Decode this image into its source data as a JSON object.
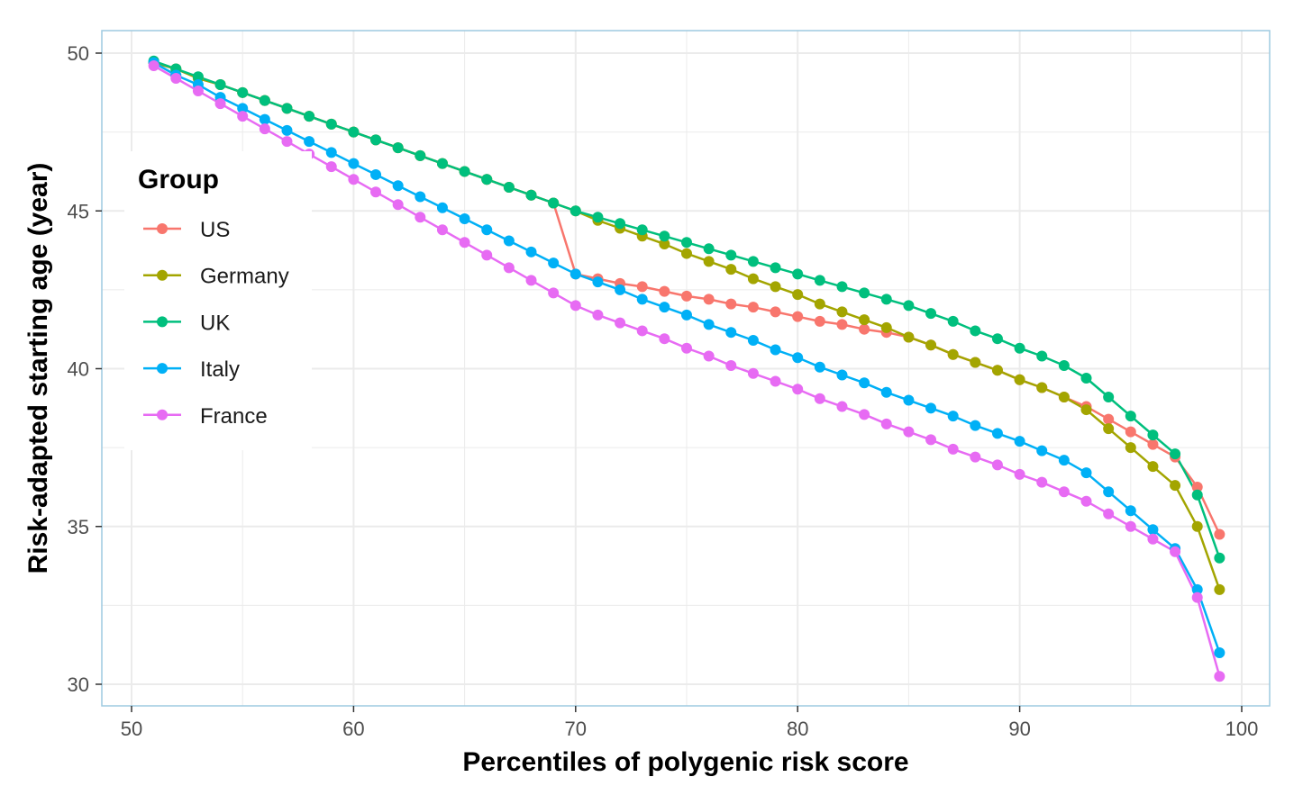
{
  "chart_data": {
    "type": "line",
    "xlabel": "Percentiles of polygenic risk score",
    "ylabel": "Risk-adapted starting age (year)",
    "xlim": [
      50,
      100
    ],
    "ylim": [
      30,
      50
    ],
    "x_ticks": [
      "50",
      "60",
      "70",
      "80",
      "90",
      "100"
    ],
    "y_ticks": [
      "30",
      "35",
      "40",
      "45",
      "50"
    ],
    "grid": true,
    "legend": {
      "title": "Group",
      "position": "left"
    },
    "x": [
      51,
      52,
      53,
      54,
      55,
      56,
      57,
      58,
      59,
      60,
      61,
      62,
      63,
      64,
      65,
      66,
      67,
      68,
      69,
      70,
      71,
      72,
      73,
      74,
      75,
      76,
      77,
      78,
      79,
      80,
      81,
      82,
      83,
      84,
      85,
      86,
      87,
      88,
      89,
      90,
      91,
      92,
      93,
      94,
      95,
      96,
      97,
      98,
      99
    ],
    "series": [
      {
        "name": "US",
        "color": "#F8766D",
        "values": [
          49.7,
          49.5,
          49.2,
          49.0,
          48.75,
          48.5,
          48.25,
          48.0,
          47.75,
          47.5,
          47.25,
          47.0,
          46.75,
          46.5,
          46.25,
          46.0,
          45.75,
          45.5,
          45.25,
          43.0,
          42.85,
          42.7,
          42.6,
          42.45,
          42.3,
          42.2,
          42.05,
          41.95,
          41.8,
          41.65,
          41.5,
          41.4,
          41.25,
          41.15,
          41.0,
          40.75,
          40.45,
          40.2,
          39.95,
          39.65,
          39.4,
          39.1,
          38.8,
          38.4,
          38.0,
          37.6,
          37.2,
          36.25,
          34.75
        ]
      },
      {
        "name": "Germany",
        "color": "#A3A500",
        "values": [
          49.7,
          49.5,
          49.2,
          49.0,
          48.75,
          48.5,
          48.25,
          48.0,
          47.75,
          47.5,
          47.25,
          47.0,
          46.75,
          46.5,
          46.25,
          46.0,
          45.75,
          45.5,
          45.25,
          45.0,
          44.7,
          44.45,
          44.2,
          43.95,
          43.65,
          43.4,
          43.15,
          42.85,
          42.6,
          42.35,
          42.05,
          41.8,
          41.55,
          41.3,
          41.0,
          40.75,
          40.45,
          40.2,
          39.95,
          39.65,
          39.4,
          39.1,
          38.7,
          38.1,
          37.5,
          36.9,
          36.3,
          35.0,
          33.0
        ]
      },
      {
        "name": "UK",
        "color": "#00BF7D",
        "values": [
          49.75,
          49.5,
          49.25,
          49.0,
          48.75,
          48.5,
          48.25,
          48.0,
          47.75,
          47.5,
          47.25,
          47.0,
          46.75,
          46.5,
          46.25,
          46.0,
          45.75,
          45.5,
          45.25,
          45.0,
          44.8,
          44.6,
          44.4,
          44.2,
          44.0,
          43.8,
          43.6,
          43.4,
          43.2,
          43.0,
          42.8,
          42.6,
          42.4,
          42.2,
          42.0,
          41.75,
          41.5,
          41.2,
          40.95,
          40.65,
          40.4,
          40.1,
          39.7,
          39.1,
          38.5,
          37.9,
          37.3,
          36.0,
          34.0
        ]
      },
      {
        "name": "Italy",
        "color": "#00B0F6",
        "values": [
          49.7,
          49.3,
          49.0,
          48.6,
          48.25,
          47.9,
          47.55,
          47.2,
          46.85,
          46.5,
          46.15,
          45.8,
          45.45,
          45.1,
          44.75,
          44.4,
          44.05,
          43.7,
          43.35,
          43.0,
          42.75,
          42.5,
          42.2,
          41.95,
          41.7,
          41.4,
          41.15,
          40.9,
          40.6,
          40.35,
          40.05,
          39.8,
          39.55,
          39.25,
          39.0,
          38.75,
          38.5,
          38.2,
          37.95,
          37.7,
          37.4,
          37.1,
          36.7,
          36.1,
          35.5,
          34.9,
          34.3,
          33.0,
          31.0
        ]
      },
      {
        "name": "France",
        "color": "#E76BF3",
        "values": [
          49.6,
          49.2,
          48.8,
          48.4,
          48.0,
          47.6,
          47.2,
          46.8,
          46.4,
          46.0,
          45.6,
          45.2,
          44.8,
          44.4,
          44.0,
          43.6,
          43.2,
          42.8,
          42.4,
          42.0,
          41.7,
          41.45,
          41.2,
          40.95,
          40.65,
          40.4,
          40.1,
          39.85,
          39.6,
          39.35,
          39.05,
          38.8,
          38.55,
          38.25,
          38.0,
          37.75,
          37.45,
          37.2,
          36.95,
          36.65,
          36.4,
          36.1,
          35.8,
          35.4,
          35.0,
          34.6,
          34.2,
          32.75,
          30.25
        ]
      }
    ]
  }
}
